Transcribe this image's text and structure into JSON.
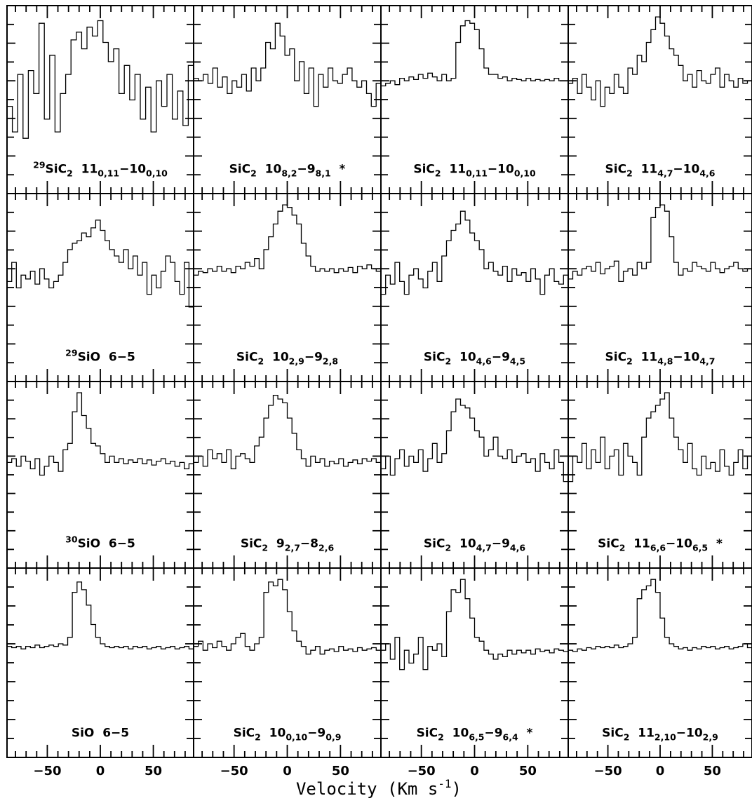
{
  "chart_data": {
    "type": "line",
    "layout": "4x4 grid of spectra (histogram steps)",
    "xlabel": "Velocity (Km s",
    "xlabel_sup": "-1",
    "xlabel_close": ")",
    "xlim": [
      -88,
      88
    ],
    "xticks": [
      -50,
      0,
      50
    ],
    "xtick_labels": [
      "-50",
      "0",
      "50"
    ],
    "ylim": [
      0,
      1
    ],
    "grid": false,
    "panels": [
      {
        "label_parts": [
          [
            "sup",
            "29"
          ],
          [
            "n",
            "SiC"
          ],
          [
            "sub",
            "2"
          ],
          [
            "n",
            "  11"
          ],
          [
            "sub",
            "0,11"
          ],
          [
            "n",
            "−10"
          ],
          [
            "sub",
            "0,10"
          ]
        ],
        "values": [
          0.3,
          0.1,
          0.55,
          0.05,
          0.58,
          0.4,
          0.95,
          0.2,
          0.7,
          0.1,
          0.4,
          0.55,
          0.82,
          0.88,
          0.75,
          0.92,
          0.85,
          0.97,
          0.8,
          0.65,
          0.75,
          0.4,
          0.62,
          0.35,
          0.55,
          0.2,
          0.45,
          0.1,
          0.5,
          0.3,
          0.55,
          0.2,
          0.42,
          0.15,
          0.62
        ]
      },
      {
        "label_parts": [
          [
            "n",
            "SiC"
          ],
          [
            "sub",
            "2"
          ],
          [
            "n",
            "  10"
          ],
          [
            "sub",
            "8,2"
          ],
          [
            "n",
            "−9"
          ],
          [
            "sub",
            "8,1"
          ],
          [
            "n",
            "  *"
          ]
        ],
        "values": [
          0.52,
          0.5,
          0.55,
          0.48,
          0.6,
          0.45,
          0.53,
          0.4,
          0.5,
          0.45,
          0.55,
          0.42,
          0.6,
          0.5,
          0.6,
          0.8,
          0.75,
          0.95,
          0.85,
          0.7,
          0.75,
          0.5,
          0.65,
          0.4,
          0.6,
          0.3,
          0.55,
          0.45,
          0.6,
          0.5,
          0.48,
          0.55,
          0.6,
          0.5,
          0.45,
          0.5,
          0.4,
          0.3,
          0.48
        ]
      },
      {
        "label_parts": [
          [
            "n",
            "SiC"
          ],
          [
            "sub",
            "2"
          ],
          [
            "n",
            "  11"
          ],
          [
            "sub",
            "0,11"
          ],
          [
            "n",
            "−10"
          ],
          [
            "sub",
            "0,10"
          ]
        ],
        "values": [
          0.46,
          0.48,
          0.5,
          0.47,
          0.52,
          0.5,
          0.53,
          0.51,
          0.55,
          0.52,
          0.56,
          0.53,
          0.5,
          0.55,
          0.5,
          0.52,
          0.8,
          0.93,
          0.97,
          0.95,
          0.9,
          0.75,
          0.6,
          0.55,
          0.55,
          0.52,
          0.53,
          0.5,
          0.52,
          0.51,
          0.5,
          0.52,
          0.5,
          0.51,
          0.5,
          0.51,
          0.5,
          0.52,
          0.5,
          0.5
        ]
      },
      {
        "label_parts": [
          [
            "n",
            "SiC"
          ],
          [
            "sub",
            "2"
          ],
          [
            "n",
            "  11"
          ],
          [
            "sub",
            "4,7"
          ],
          [
            "n",
            "−10"
          ],
          [
            "sub",
            "4,6"
          ]
        ],
        "values": [
          0.48,
          0.52,
          0.4,
          0.55,
          0.45,
          0.35,
          0.5,
          0.3,
          0.45,
          0.4,
          0.55,
          0.45,
          0.4,
          0.6,
          0.55,
          0.7,
          0.65,
          0.8,
          0.9,
          1.0,
          0.95,
          0.85,
          0.75,
          0.7,
          0.62,
          0.5,
          0.55,
          0.45,
          0.58,
          0.5,
          0.48,
          0.55,
          0.6,
          0.45,
          0.55,
          0.5,
          0.45,
          0.52,
          0.48,
          0.5
        ]
      },
      {
        "label_parts": [
          [
            "sup",
            "29"
          ],
          [
            "n",
            "SiO  6−5"
          ]
        ],
        "values": [
          0.4,
          0.55,
          0.35,
          0.45,
          0.42,
          0.48,
          0.38,
          0.5,
          0.42,
          0.35,
          0.4,
          0.45,
          0.55,
          0.65,
          0.7,
          0.72,
          0.78,
          0.75,
          0.82,
          0.88,
          0.8,
          0.72,
          0.65,
          0.6,
          0.55,
          0.65,
          0.5,
          0.6,
          0.45,
          0.55,
          0.3,
          0.45,
          0.35,
          0.48,
          0.6,
          0.55,
          0.4,
          0.3,
          0.55,
          0.2
        ]
      },
      {
        "label_parts": [
          [
            "n",
            "SiC"
          ],
          [
            "sub",
            "2"
          ],
          [
            "n",
            "  10"
          ],
          [
            "sub",
            "2,9"
          ],
          [
            "n",
            "−9"
          ],
          [
            "sub",
            "2,8"
          ]
        ],
        "values": [
          0.45,
          0.48,
          0.47,
          0.5,
          0.48,
          0.52,
          0.48,
          0.5,
          0.47,
          0.52,
          0.5,
          0.55,
          0.52,
          0.58,
          0.5,
          0.65,
          0.75,
          0.85,
          0.95,
          1.0,
          0.98,
          0.92,
          0.85,
          0.7,
          0.6,
          0.52,
          0.48,
          0.5,
          0.48,
          0.5,
          0.47,
          0.5,
          0.48,
          0.51,
          0.47,
          0.52,
          0.5,
          0.53,
          0.5,
          0.48
        ]
      },
      {
        "label_parts": [
          [
            "n",
            "SiC"
          ],
          [
            "sub",
            "2"
          ],
          [
            "n",
            "  10"
          ],
          [
            "sub",
            "4,6"
          ],
          [
            "n",
            "−9"
          ],
          [
            "sub",
            "4,5"
          ]
        ],
        "values": [
          0.3,
          0.45,
          0.38,
          0.55,
          0.4,
          0.3,
          0.45,
          0.5,
          0.42,
          0.35,
          0.48,
          0.55,
          0.4,
          0.6,
          0.72,
          0.8,
          0.85,
          0.95,
          0.88,
          0.78,
          0.72,
          0.65,
          0.5,
          0.55,
          0.48,
          0.45,
          0.52,
          0.4,
          0.5,
          0.45,
          0.47,
          0.4,
          0.5,
          0.42,
          0.3,
          0.45,
          0.5,
          0.4,
          0.38,
          0.45
        ]
      },
      {
        "label_parts": [
          [
            "n",
            "SiC"
          ],
          [
            "sub",
            "2"
          ],
          [
            "n",
            "  11"
          ],
          [
            "sub",
            "4,8"
          ],
          [
            "n",
            "−10"
          ],
          [
            "sub",
            "4,7"
          ]
        ],
        "values": [
          0.42,
          0.48,
          0.45,
          0.5,
          0.52,
          0.48,
          0.55,
          0.46,
          0.5,
          0.52,
          0.56,
          0.4,
          0.48,
          0.5,
          0.45,
          0.55,
          0.5,
          0.55,
          0.9,
          0.98,
          1.0,
          0.95,
          0.75,
          0.55,
          0.45,
          0.5,
          0.48,
          0.55,
          0.52,
          0.5,
          0.48,
          0.55,
          0.5,
          0.47,
          0.5,
          0.52,
          0.55,
          0.5,
          0.48,
          0.5
        ]
      },
      {
        "label_parts": [
          [
            "sup",
            "30"
          ],
          [
            "n",
            "SiO  6−5"
          ]
        ],
        "values": [
          0.45,
          0.48,
          0.42,
          0.5,
          0.46,
          0.4,
          0.48,
          0.35,
          0.42,
          0.5,
          0.45,
          0.38,
          0.55,
          0.6,
          0.85,
          1.0,
          0.82,
          0.72,
          0.6,
          0.58,
          0.52,
          0.45,
          0.5,
          0.45,
          0.48,
          0.44,
          0.47,
          0.45,
          0.48,
          0.44,
          0.47,
          0.43,
          0.46,
          0.48,
          0.44,
          0.46,
          0.42,
          0.45,
          0.4,
          0.44
        ]
      },
      {
        "label_parts": [
          [
            "n",
            "SiC"
          ],
          [
            "sub",
            "2"
          ],
          [
            "n",
            "  9"
          ],
          [
            "sub",
            "2,7"
          ],
          [
            "n",
            "−8"
          ],
          [
            "sub",
            "2,6"
          ]
        ],
        "values": [
          0.45,
          0.5,
          0.42,
          0.55,
          0.48,
          0.52,
          0.45,
          0.55,
          0.4,
          0.5,
          0.52,
          0.48,
          0.45,
          0.58,
          0.65,
          0.8,
          0.9,
          0.98,
          0.95,
          0.92,
          0.8,
          0.68,
          0.55,
          0.48,
          0.42,
          0.5,
          0.45,
          0.48,
          0.42,
          0.46,
          0.44,
          0.48,
          0.42,
          0.45,
          0.47,
          0.44,
          0.48,
          0.46,
          0.48,
          0.45
        ]
      },
      {
        "label_parts": [
          [
            "n",
            "SiC"
          ],
          [
            "sub",
            "2"
          ],
          [
            "n",
            "  10"
          ],
          [
            "sub",
            "4,7"
          ],
          [
            "n",
            "−9"
          ],
          [
            "sub",
            "4,6"
          ]
        ],
        "values": [
          0.4,
          0.5,
          0.35,
          0.48,
          0.55,
          0.42,
          0.5,
          0.45,
          0.55,
          0.38,
          0.48,
          0.6,
          0.45,
          0.52,
          0.7,
          0.85,
          0.95,
          0.9,
          0.88,
          0.8,
          0.7,
          0.65,
          0.5,
          0.55,
          0.65,
          0.5,
          0.48,
          0.55,
          0.45,
          0.5,
          0.52,
          0.45,
          0.48,
          0.38,
          0.52,
          0.45,
          0.4,
          0.55,
          0.45,
          0.3
        ]
      },
      {
        "label_parts": [
          [
            "n",
            "SiC"
          ],
          [
            "sub",
            "2"
          ],
          [
            "n",
            "  11"
          ],
          [
            "sub",
            "6,6"
          ],
          [
            "n",
            "−10"
          ],
          [
            "sub",
            "6,5"
          ],
          [
            "n",
            "  *"
          ]
        ],
        "values": [
          0.3,
          0.5,
          0.45,
          0.6,
          0.4,
          0.55,
          0.45,
          0.65,
          0.4,
          0.5,
          0.55,
          0.35,
          0.6,
          0.5,
          0.45,
          0.35,
          0.65,
          0.8,
          0.85,
          0.9,
          0.95,
          1.0,
          0.8,
          0.65,
          0.55,
          0.45,
          0.6,
          0.4,
          0.35,
          0.5,
          0.4,
          0.45,
          0.38,
          0.55,
          0.42,
          0.35,
          0.45,
          0.55,
          0.4,
          0.5
        ]
      },
      {
        "label_parts": [
          [
            "n",
            "SiO  6−5"
          ]
        ],
        "values": [
          0.48,
          0.47,
          0.48,
          0.46,
          0.48,
          0.47,
          0.49,
          0.47,
          0.48,
          0.49,
          0.48,
          0.5,
          0.49,
          0.55,
          0.9,
          0.98,
          0.92,
          0.8,
          0.65,
          0.55,
          0.5,
          0.48,
          0.47,
          0.48,
          0.47,
          0.48,
          0.46,
          0.48,
          0.47,
          0.48,
          0.46,
          0.47,
          0.48,
          0.46,
          0.47,
          0.48,
          0.46,
          0.47,
          0.48,
          0.46
        ]
      },
      {
        "label_parts": [
          [
            "n",
            "SiC"
          ],
          [
            "sub",
            "2"
          ],
          [
            "n",
            "  10"
          ],
          [
            "sub",
            "0,10"
          ],
          [
            "n",
            "−9"
          ],
          [
            "sub",
            "0,9"
          ]
        ],
        "values": [
          0.48,
          0.52,
          0.45,
          0.5,
          0.47,
          0.52,
          0.48,
          0.45,
          0.5,
          0.55,
          0.58,
          0.48,
          0.45,
          0.5,
          0.55,
          0.9,
          0.98,
          0.95,
          1.0,
          0.92,
          0.75,
          0.6,
          0.52,
          0.48,
          0.42,
          0.45,
          0.48,
          0.42,
          0.45,
          0.46,
          0.44,
          0.48,
          0.45,
          0.46,
          0.44,
          0.47,
          0.45,
          0.46,
          0.47,
          0.45
        ]
      },
      {
        "label_parts": [
          [
            "n",
            "SiC"
          ],
          [
            "sub",
            "2"
          ],
          [
            "n",
            "  10"
          ],
          [
            "sub",
            "6,5"
          ],
          [
            "n",
            "−9"
          ],
          [
            "sub",
            "6,4"
          ],
          [
            "n",
            "  *"
          ]
        ],
        "values": [
          0.45,
          0.5,
          0.38,
          0.55,
          0.3,
          0.45,
          0.35,
          0.42,
          0.55,
          0.3,
          0.48,
          0.45,
          0.5,
          0.4,
          0.75,
          0.92,
          0.9,
          1.0,
          0.85,
          0.7,
          0.55,
          0.52,
          0.45,
          0.42,
          0.38,
          0.42,
          0.4,
          0.45,
          0.42,
          0.45,
          0.43,
          0.45,
          0.42,
          0.46,
          0.44,
          0.45,
          0.43,
          0.46,
          0.45,
          0.44
        ]
      },
      {
        "label_parts": [
          [
            "n",
            "SiC"
          ],
          [
            "sub",
            "2"
          ],
          [
            "n",
            "  11"
          ],
          [
            "sub",
            "2,10"
          ],
          [
            "n",
            "−10"
          ],
          [
            "sub",
            "2,9"
          ]
        ],
        "values": [
          0.45,
          0.44,
          0.46,
          0.45,
          0.47,
          0.46,
          0.48,
          0.47,
          0.48,
          0.47,
          0.49,
          0.47,
          0.48,
          0.5,
          0.55,
          0.85,
          0.92,
          0.95,
          1.0,
          0.9,
          0.7,
          0.55,
          0.5,
          0.48,
          0.46,
          0.47,
          0.45,
          0.47,
          0.46,
          0.48,
          0.47,
          0.48,
          0.46,
          0.47,
          0.48,
          0.46,
          0.47,
          0.48,
          0.5,
          0.47
        ]
      }
    ]
  }
}
